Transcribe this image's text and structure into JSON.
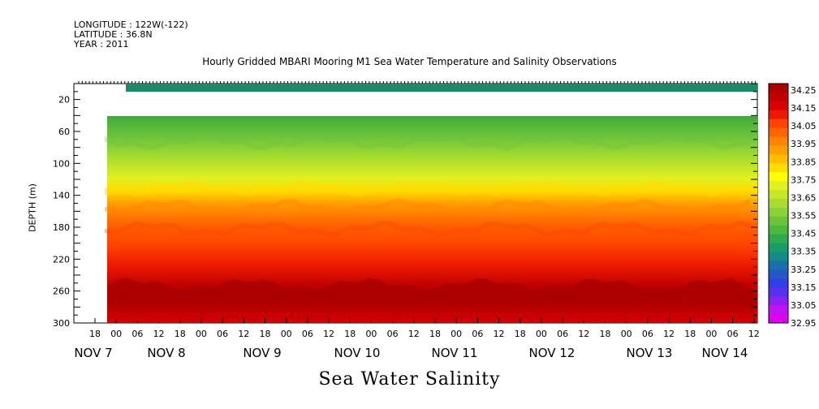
{
  "header": {
    "longitude": "LONGITUDE : 122W(-122)",
    "latitude": "LATITUDE : 36.8N",
    "year": "YEAR : 2011"
  },
  "chart_data": {
    "type": "heatmap",
    "title": "Hourly Gridded MBARI Mooring M1 Sea Water Temperature and Salinity Observations",
    "xlabel": "Sea Water Salinity",
    "ylabel": "DEPTH (m)",
    "ylim": [
      300,
      0
    ],
    "y_ticks": [
      20,
      60,
      100,
      140,
      180,
      220,
      260,
      300
    ],
    "x_ticks": [
      "18",
      "00",
      "06",
      "12",
      "18",
      "00",
      "06",
      "12",
      "18",
      "00",
      "06",
      "12",
      "18",
      "00",
      "06",
      "12",
      "18",
      "00",
      "06",
      "12",
      "18",
      "00",
      "06",
      "12",
      "18",
      "00",
      "06",
      "12",
      "18",
      "00",
      "06",
      "12"
    ],
    "day_labels": [
      "NOV  7",
      "NOV  8",
      "NOV  9",
      "NOV 10",
      "NOV 11",
      "NOV 12",
      "NOV 13",
      "NOV 14"
    ],
    "colorbar": {
      "labels": [
        "34.25",
        "34.15",
        "34.05",
        "33.95",
        "33.85",
        "33.75",
        "33.65",
        "33.55",
        "33.45",
        "33.35",
        "33.25",
        "33.15",
        "33.05",
        "32.95"
      ],
      "colors": [
        "#aa0000",
        "#c00000",
        "#d80000",
        "#ee1a00",
        "#ff4400",
        "#ff6400",
        "#ff8400",
        "#ffa000",
        "#ffbe00",
        "#ffdc00",
        "#ffff00",
        "#e0f020",
        "#c6e628",
        "#a8dc30",
        "#8cd236",
        "#6cc43c",
        "#4cb83c",
        "#30aa4c",
        "#1a9c6a",
        "#168a88",
        "#1870a8",
        "#2458c8",
        "#3040e4",
        "#5830f0",
        "#8a20f2",
        "#c012f4",
        "#dd00ee"
      ]
    },
    "depth_profile": [
      {
        "depth": 8,
        "salinity": 33.3
      },
      {
        "depth": 40,
        "salinity": 33.5
      },
      {
        "depth": 70,
        "salinity": 33.6
      },
      {
        "depth": 100,
        "salinity": 33.7
      },
      {
        "depth": 130,
        "salinity": 33.8
      },
      {
        "depth": 150,
        "salinity": 34.0
      },
      {
        "depth": 180,
        "salinity": 34.05
      },
      {
        "depth": 220,
        "salinity": 34.15
      },
      {
        "depth": 260,
        "salinity": 34.25
      },
      {
        "depth": 300,
        "salinity": 34.2
      }
    ]
  }
}
